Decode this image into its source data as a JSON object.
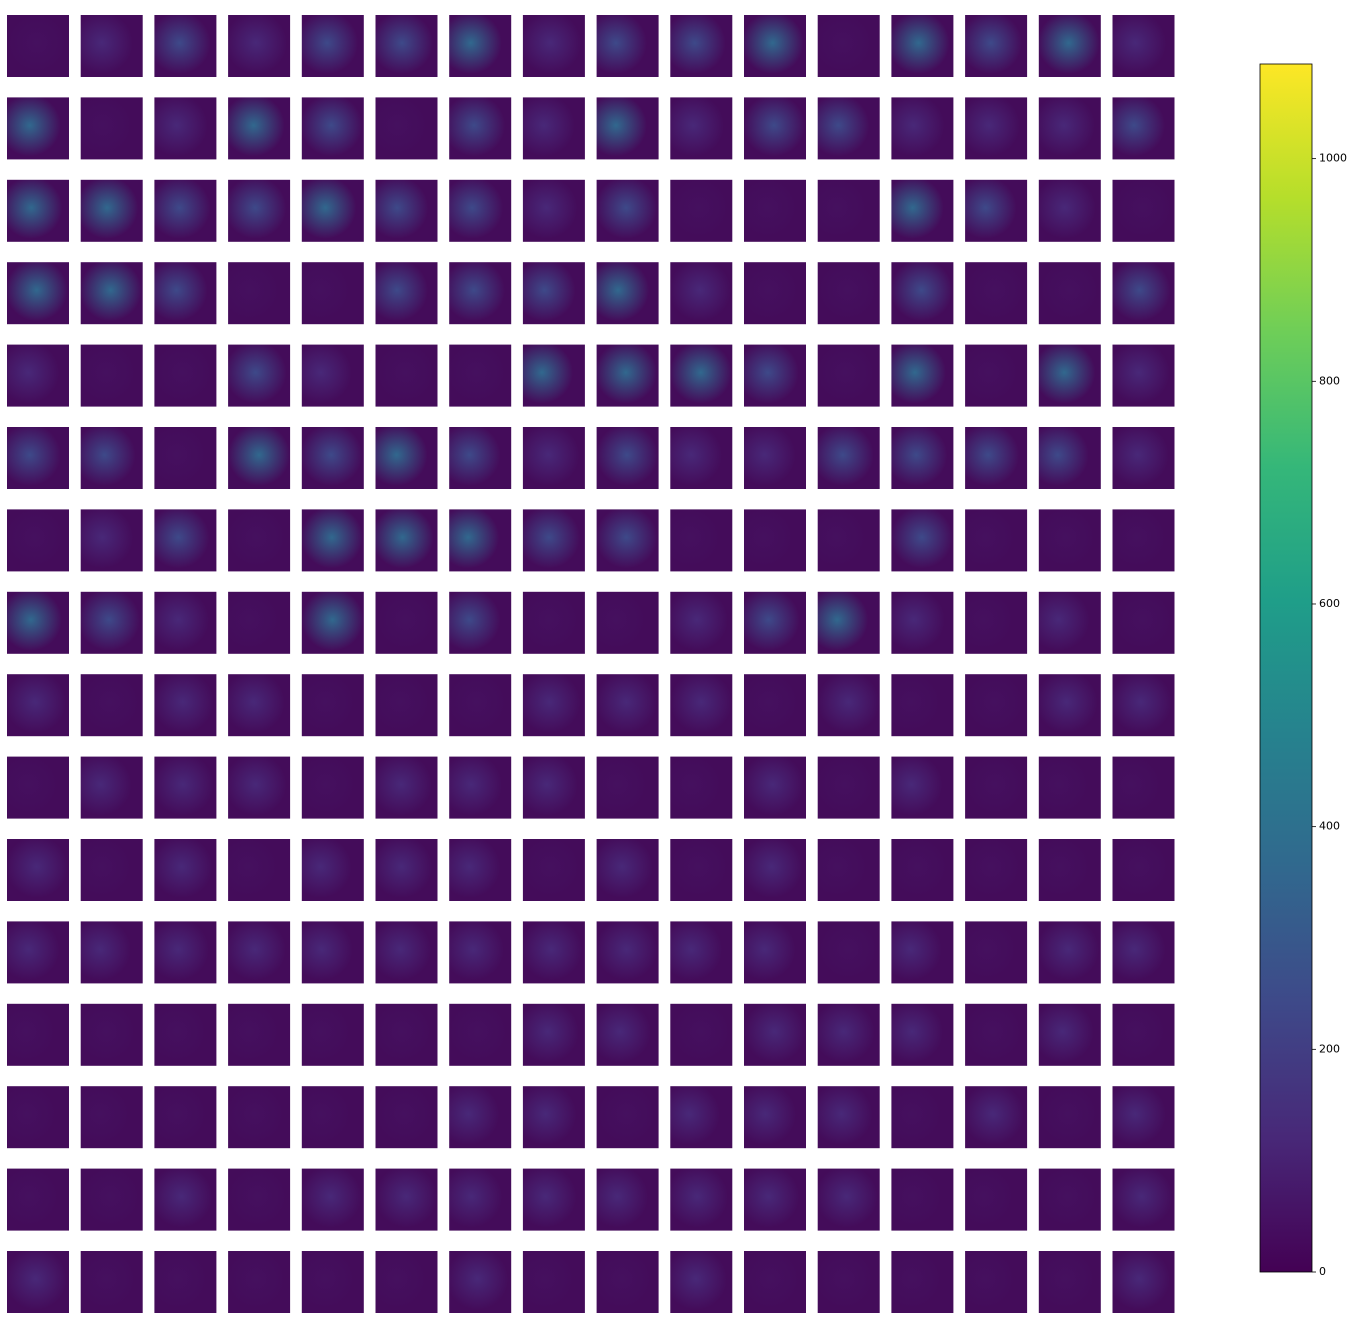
{
  "chart_data": {
    "type": "heatmap-grid",
    "colormap": "viridis",
    "clim": [
      0,
      1085
    ],
    "cticks": [
      0,
      200,
      400,
      600,
      800,
      1000
    ]
  }
}
